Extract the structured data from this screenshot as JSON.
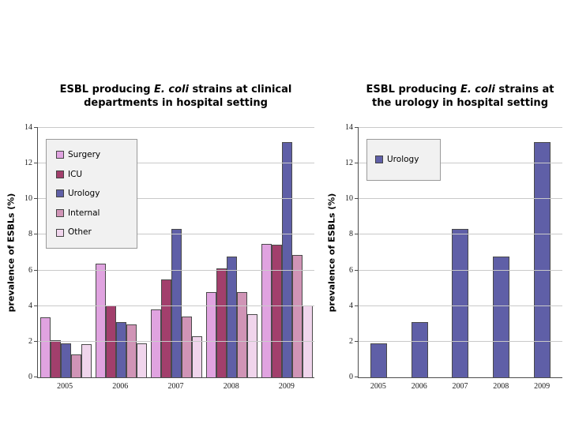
{
  "page": {
    "background": "#ffffff"
  },
  "chart_data": [
    {
      "type": "bar",
      "title": "ESBL producing E. coli strains at clinical departments in hospital setting",
      "title_prefix": "ESBL producing ",
      "title_italic": "E. coli",
      "title_suffix": " strains at clinical departments in hospital setting",
      "categories": [
        "2005",
        "2006",
        "2007",
        "2008",
        "2009"
      ],
      "series": [
        {
          "name": "Surgery",
          "color": "#E0A3E0",
          "values": [
            3.35,
            6.4,
            3.8,
            4.8,
            7.5
          ]
        },
        {
          "name": "ICU",
          "color": "#A23F6C",
          "values": [
            2.1,
            4.05,
            5.5,
            6.1,
            7.45
          ]
        },
        {
          "name": "Urology",
          "color": "#5F5FA7",
          "values": [
            1.9,
            3.1,
            8.35,
            6.8,
            13.2
          ]
        },
        {
          "name": "Internal",
          "color": "#D094B6",
          "values": [
            1.3,
            2.95,
            3.4,
            4.8,
            6.85
          ]
        },
        {
          "name": "Other",
          "color": "#F0D5EC",
          "values": [
            1.85,
            1.9,
            2.3,
            3.55,
            4.05
          ]
        }
      ],
      "xlabel": "",
      "ylabel": "prevalence of ESBLs (%)",
      "ylim": [
        0,
        14
      ],
      "yticks": [
        0,
        2,
        4,
        6,
        8,
        10,
        12,
        14
      ],
      "grid": true,
      "legend_position": "inside-top-left"
    },
    {
      "type": "bar",
      "title": "ESBL producing E. coli strains at the urology in hospital setting",
      "title_prefix": "ESBL producing ",
      "title_italic": "E. coli",
      "title_suffix": " strains at the urology in hospital setting",
      "categories": [
        "2005",
        "2006",
        "2007",
        "2008",
        "2009"
      ],
      "series": [
        {
          "name": "Urology",
          "color": "#5F5FA7",
          "values": [
            1.9,
            3.1,
            8.35,
            6.8,
            13.2
          ]
        }
      ],
      "xlabel": "",
      "ylabel": "prevalence of ESBLs (%)",
      "ylim": [
        0,
        14
      ],
      "yticks": [
        0,
        2,
        4,
        6,
        8,
        10,
        12,
        14
      ],
      "grid": true,
      "legend_position": "inside-top-left"
    }
  ]
}
